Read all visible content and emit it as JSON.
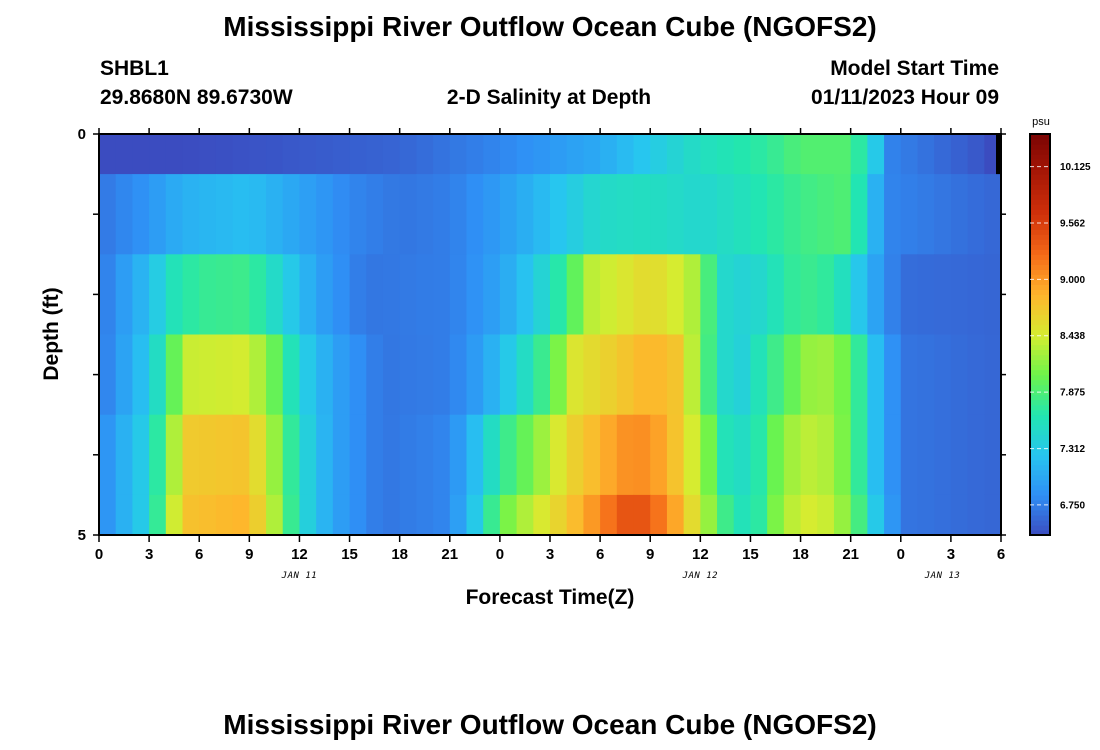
{
  "page": {
    "title": "Mississippi River Outflow Ocean Cube (NGOFS2)",
    "station_id": "SHBL1",
    "station_coords": "29.8680N  89.6730W",
    "subtitle": "2-D Salinity at Depth",
    "model_start_label": "Model Start Time",
    "model_start_value": "01/11/2023 Hour 09",
    "bottom_title": "Mississippi River Outflow Ocean Cube (NGOFS2)"
  },
  "chart_data": {
    "type": "heatmap",
    "title": "2-D Salinity at Depth",
    "xlabel": "Forecast Time(Z)",
    "ylabel": "Depth (ft)",
    "x_start_hour": 0,
    "x_end_hour": 54,
    "x_ticks": [
      "0",
      "3",
      "6",
      "9",
      "12",
      "15",
      "18",
      "21",
      "0",
      "3",
      "6",
      "9",
      "12",
      "15",
      "18",
      "21",
      "0",
      "3",
      "6"
    ],
    "date_labels": [
      {
        "label": "JAN 11",
        "hour": 12
      },
      {
        "label": "JAN 12",
        "hour": 36
      },
      {
        "label": "JAN 13",
        "hour": 50.5
      }
    ],
    "y_ticks": [
      "0",
      "5"
    ],
    "ylim": [
      0,
      5
    ],
    "depth_bands": [
      {
        "from": 0,
        "to": 0.5
      },
      {
        "from": 0.5,
        "to": 1.5
      },
      {
        "from": 1.5,
        "to": 2.5
      },
      {
        "from": 2.5,
        "to": 3.5
      },
      {
        "from": 3.5,
        "to": 4.5
      },
      {
        "from": 4.5,
        "to": 5
      }
    ],
    "band_keyframes": [
      [
        [
          0,
          6.4
        ],
        [
          10,
          6.5
        ],
        [
          18,
          6.6
        ],
        [
          24,
          6.8
        ],
        [
          30,
          7.05
        ],
        [
          33,
          7.3
        ],
        [
          36,
          7.55
        ],
        [
          40,
          7.72
        ],
        [
          42,
          7.9
        ],
        [
          45,
          7.9
        ],
        [
          46.5,
          7.3
        ],
        [
          47,
          6.8
        ],
        [
          53,
          6.5
        ],
        [
          54,
          6.4
        ]
      ],
      [
        [
          0,
          6.7
        ],
        [
          3,
          6.9
        ],
        [
          5,
          7.1
        ],
        [
          9,
          7.2
        ],
        [
          12,
          7.0
        ],
        [
          15,
          6.8
        ],
        [
          18,
          6.7
        ],
        [
          21,
          6.75
        ],
        [
          24,
          6.95
        ],
        [
          28,
          7.3
        ],
        [
          30,
          7.5
        ],
        [
          33,
          7.55
        ],
        [
          36,
          7.45
        ],
        [
          39,
          7.6
        ],
        [
          42,
          7.8
        ],
        [
          45,
          7.9
        ],
        [
          46.5,
          7.1
        ],
        [
          47,
          6.8
        ],
        [
          54,
          6.6
        ]
      ],
      [
        [
          0,
          6.7
        ],
        [
          3,
          7.2
        ],
        [
          4.5,
          7.6
        ],
        [
          6,
          7.75
        ],
        [
          9,
          7.8
        ],
        [
          11,
          7.4
        ],
        [
          13,
          7.0
        ],
        [
          16,
          6.7
        ],
        [
          21,
          6.75
        ],
        [
          24,
          7.0
        ],
        [
          26,
          7.3
        ],
        [
          28,
          7.8
        ],
        [
          29.5,
          8.35
        ],
        [
          33,
          8.6
        ],
        [
          35,
          8.4
        ],
        [
          36,
          8.2
        ],
        [
          37,
          7.5
        ],
        [
          39,
          7.4
        ],
        [
          42,
          7.8
        ],
        [
          44,
          7.7
        ],
        [
          46.5,
          7.0
        ],
        [
          48,
          6.65
        ],
        [
          54,
          6.6
        ]
      ],
      [
        [
          0,
          6.7
        ],
        [
          3,
          7.3
        ],
        [
          4.5,
          8.0
        ],
        [
          5.5,
          8.4
        ],
        [
          9,
          8.45
        ],
        [
          10.5,
          8.0
        ],
        [
          12,
          7.4
        ],
        [
          14,
          7.0
        ],
        [
          17,
          6.7
        ],
        [
          21,
          6.75
        ],
        [
          23,
          7.0
        ],
        [
          25,
          7.4
        ],
        [
          27,
          7.9
        ],
        [
          28.5,
          8.5
        ],
        [
          33,
          8.85
        ],
        [
          35,
          8.7
        ],
        [
          36,
          8.0
        ],
        [
          38,
          7.3
        ],
        [
          41,
          7.9
        ],
        [
          43,
          8.3
        ],
        [
          45,
          8.0
        ],
        [
          46.5,
          7.2
        ],
        [
          48,
          6.7
        ],
        [
          54,
          6.6
        ]
      ],
      [
        [
          0,
          6.8
        ],
        [
          3,
          7.4
        ],
        [
          4.5,
          8.3
        ],
        [
          5.5,
          8.7
        ],
        [
          9,
          8.75
        ],
        [
          10.5,
          8.2
        ],
        [
          12,
          7.5
        ],
        [
          14,
          7.0
        ],
        [
          17,
          6.7
        ],
        [
          21,
          6.8
        ],
        [
          22.5,
          7.2
        ],
        [
          24,
          7.7
        ],
        [
          26,
          8.1
        ],
        [
          28,
          8.6
        ],
        [
          32,
          9.1
        ],
        [
          34,
          8.9
        ],
        [
          36,
          8.3
        ],
        [
          37.5,
          7.6
        ],
        [
          39,
          7.5
        ],
        [
          41,
          8.2
        ],
        [
          43,
          8.4
        ],
        [
          45,
          8.0
        ],
        [
          46.5,
          7.2
        ],
        [
          48,
          6.7
        ],
        [
          54,
          6.6
        ]
      ],
      [
        [
          0,
          6.8
        ],
        [
          3,
          7.4
        ],
        [
          4,
          8.1
        ],
        [
          5,
          8.75
        ],
        [
          9,
          8.85
        ],
        [
          10.5,
          8.3
        ],
        [
          12,
          7.5
        ],
        [
          14,
          7.0
        ],
        [
          17,
          6.7
        ],
        [
          21,
          6.8
        ],
        [
          22.5,
          7.3
        ],
        [
          24,
          8.0
        ],
        [
          26,
          8.4
        ],
        [
          28,
          8.7
        ],
        [
          32,
          9.5
        ],
        [
          34,
          9.1
        ],
        [
          36,
          8.4
        ],
        [
          37.5,
          7.8
        ],
        [
          39,
          7.5
        ],
        [
          41,
          8.3
        ],
        [
          43,
          8.5
        ],
        [
          45,
          8.1
        ],
        [
          46.5,
          7.3
        ],
        [
          48,
          6.7
        ],
        [
          54,
          6.6
        ]
      ]
    ],
    "colorbar": {
      "unit": "psu",
      "min": 6.45,
      "max": 10.45,
      "labels": [
        "10.125",
        "9.562",
        "9.000",
        "8.438",
        "7.875",
        "7.312",
        "6.750"
      ],
      "colors": [
        "#3b4cc0",
        "#2f8ff5",
        "#27c5f0",
        "#22e6b0",
        "#6ef44a",
        "#d6ec30",
        "#ffb52c",
        "#f56a18",
        "#d0310a",
        "#a91806",
        "#7a0403"
      ]
    }
  }
}
